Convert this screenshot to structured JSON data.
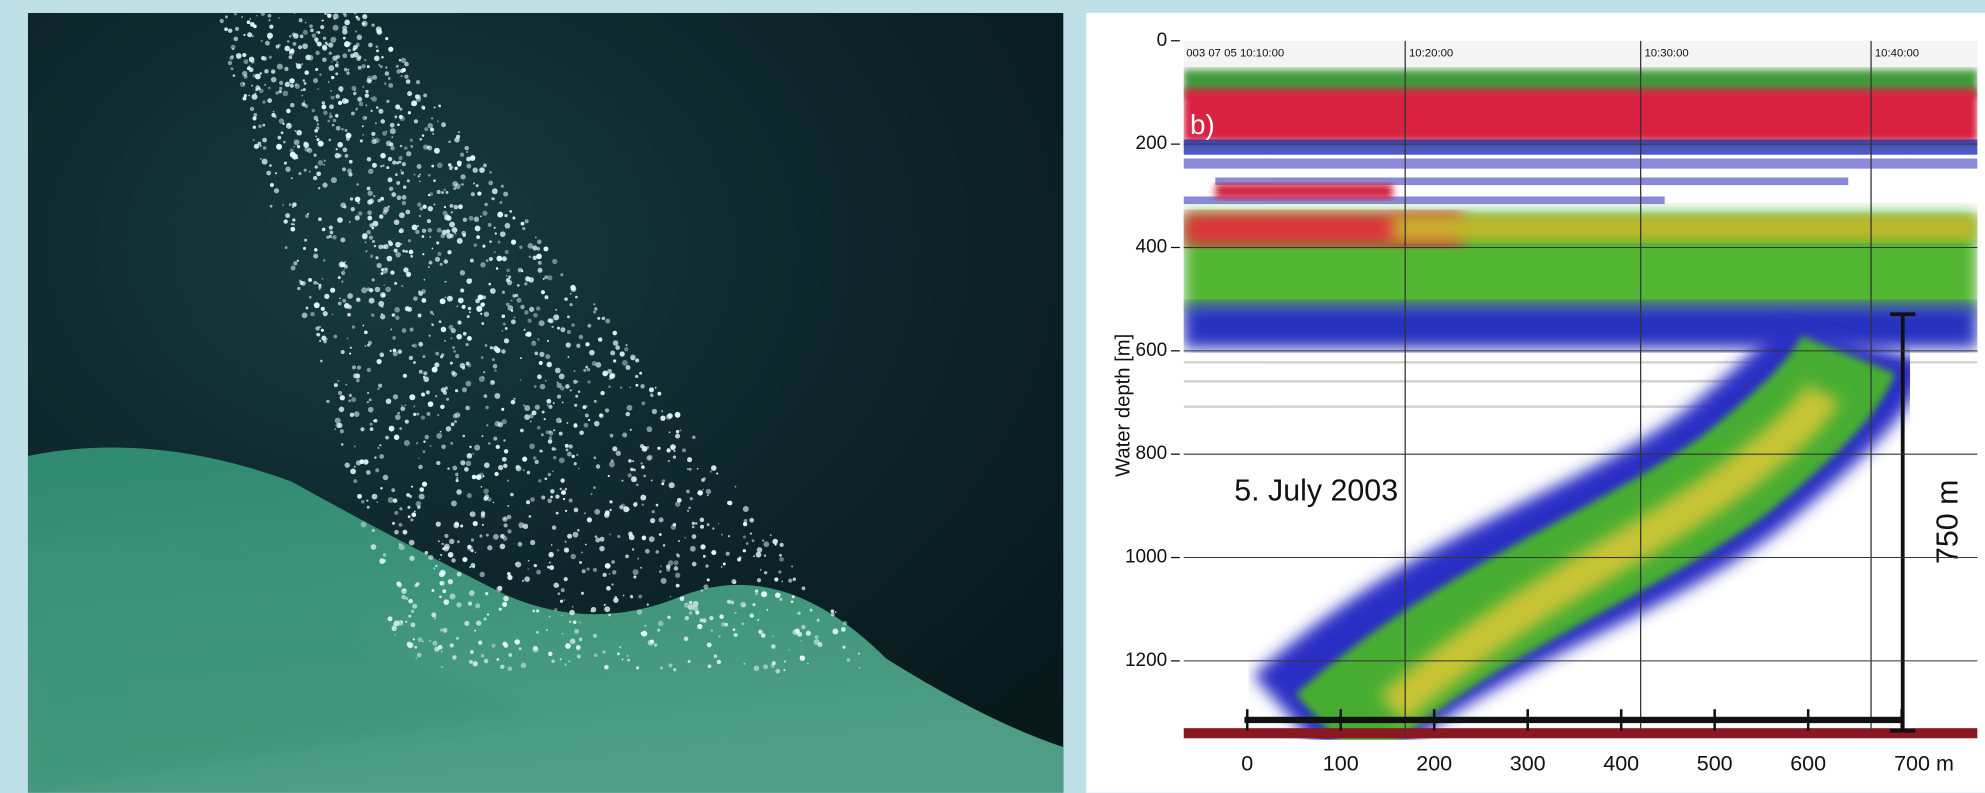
{
  "chart_data": {
    "type": "echogram",
    "panel_label": "b)",
    "ylabel": "Water depth [m]",
    "ylim": [
      0,
      1340
    ],
    "y_inverted": true,
    "yticks": [
      0,
      200,
      400,
      600,
      800,
      1000,
      1200
    ],
    "xlim": [
      -68,
      781
    ],
    "xticks": [
      0,
      100,
      200,
      300,
      400,
      500,
      600,
      {
        "value": 700,
        "label": "700 m"
      }
    ],
    "time_labels": [
      "003 07 05 10:10:00",
      "10:20:00",
      "10:30:00",
      "10:40:00"
    ],
    "annotations": [
      "5. July 2003",
      "750 m"
    ],
    "grid": true
  }
}
